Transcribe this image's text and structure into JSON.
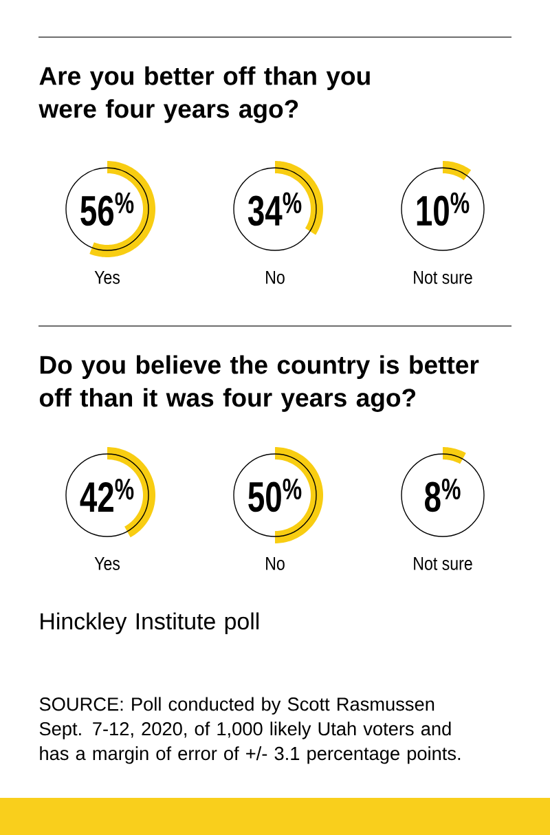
{
  "chart_data": [
    {
      "type": "other",
      "title": "Are you better off than you were four years ago?",
      "categories": [
        "Yes",
        "No",
        "Not sure"
      ],
      "values": [
        56,
        34,
        10
      ],
      "colors": [
        "#f8cd12",
        "#f8cd12",
        "#f8cd12"
      ],
      "value_labels": [
        "56$^{%}$",
        "34$^{%}$",
        "10$^{%}$"
      ]
    },
    {
      "type": "other",
      "title": "Do you believe the country is better off than it was four years ago?",
      "categories": [
        "Yes",
        "No",
        "Not sure"
      ],
      "values": [
        42,
        50,
        8
      ],
      "colors": [
        "#f8cd12",
        "#f8cd12",
        "#f8cd12"
      ],
      "value_labels": [
        "42$^{%}$",
        "50$^{%}$",
        "8$^{%}$"
      ],
      "annotations": [
        "Hinckley Institute poll",
        "SOURCE: Poll conducted by Scott Rasmussen Sept. 7-12, 2020, of 1,000 likely Utah voters and has a margin of error of +/- 3.1 percentage points."
      ]
    }
  ]
}
